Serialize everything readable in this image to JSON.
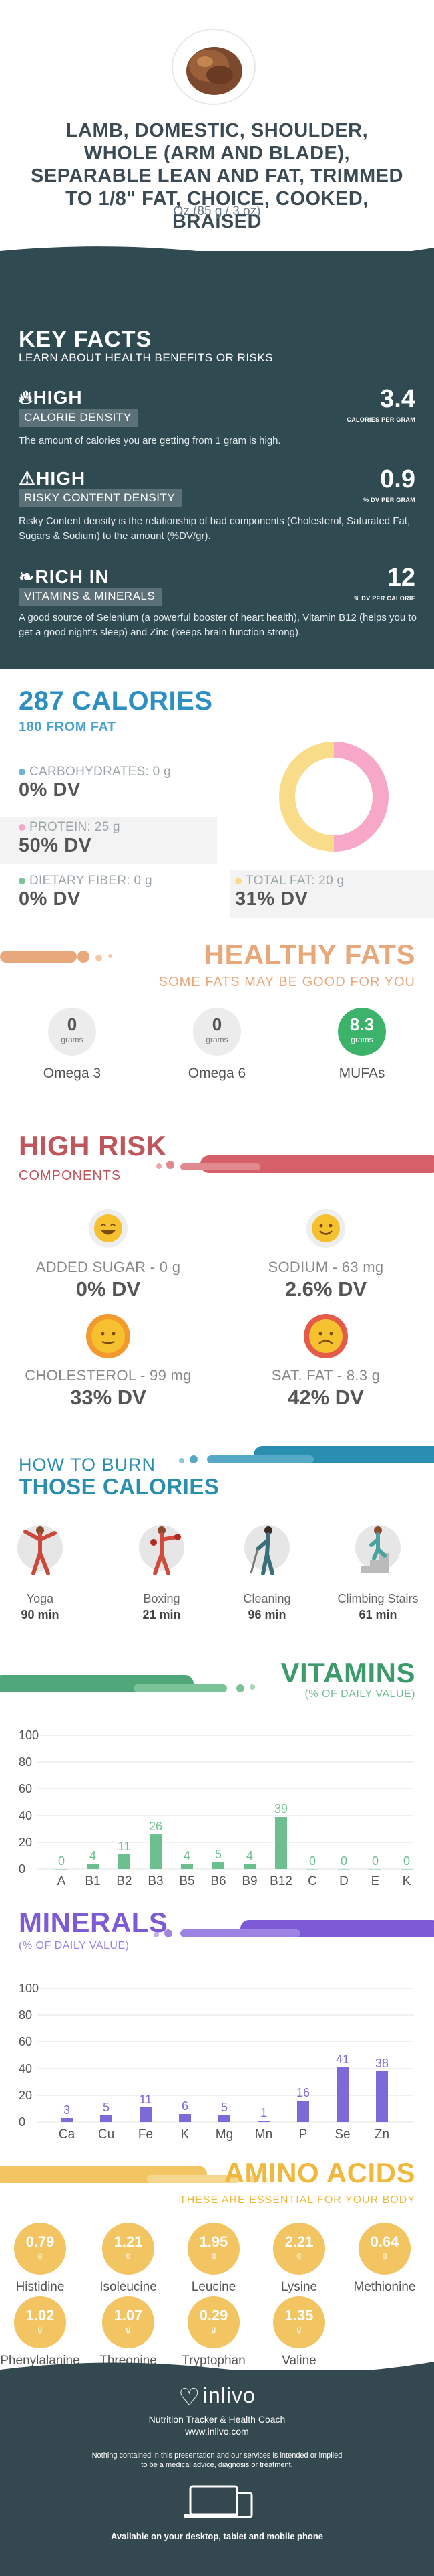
{
  "header": {
    "title": "LAMB, DOMESTIC, SHOULDER, WHOLE (ARM AND BLADE), SEPARABLE LEAN AND FAT, TRIMMED TO 1/8\" FAT, CHOICE, COOKED, BRAISED",
    "serving": "Oz (85 g / 3 oz)"
  },
  "key_facts": {
    "title": "KEY FACTS",
    "subtitle": "LEARN ABOUT HEALTH BENEFITS OR RISKS",
    "items": [
      {
        "level": "HIGH",
        "tag": "CALORIE DENSITY",
        "value": "3.4",
        "unit": "CALORIES PER GRAM",
        "desc": "The amount of calories you are getting from 1 gram is high.",
        "icon": "fire-icon"
      },
      {
        "level": "HIGH",
        "tag": "RISKY CONTENT DENSITY",
        "value": "0.9",
        "unit": "% DV PER GRAM",
        "desc": "Risky Content density is the relationship of bad components (Cholesterol, Saturated Fat, Sugars & Sodium) to the amount (%DV/gr).",
        "icon": "warning-icon"
      },
      {
        "level": "RICH IN",
        "tag": "VITAMINS & MINERALS",
        "value": "12",
        "unit": "% DV PER CALORIE",
        "desc": "A good source of Selenium (a powerful booster of heart health), Vitamin B12 (helps you to get a good night's sleep) and Zinc (keeps brain function strong).",
        "icon": "leaf-icon"
      }
    ]
  },
  "calories": {
    "title": "287 CALORIES",
    "subtitle": "180 FROM FAT",
    "carbs_label": "CARBOHYDRATES: 0 g",
    "carbs_dv": "0% DV",
    "protein_label": "PROTEIN: 25 g",
    "protein_dv": "50% DV",
    "fiber_label": "DIETARY FIBER: 0 g",
    "fiber_dv": "0% DV",
    "fat_label": "TOTAL FAT: 20 g",
    "fat_dv": "31% DV",
    "donut": {
      "protein_fraction": 0.5,
      "fat_fraction": 0.5,
      "protein_color": "#f7a8c8",
      "fat_color": "#f8dc8a"
    }
  },
  "healthy_fats": {
    "title": "HEALTHY FATS",
    "subtitle": "SOME FATS MAY BE GOOD FOR YOU",
    "items": [
      {
        "value": "0",
        "unit": "grams",
        "name": "Omega 3",
        "highlight": false
      },
      {
        "value": "0",
        "unit": "grams",
        "name": "Omega 6",
        "highlight": false
      },
      {
        "value": "8.3",
        "unit": "grams",
        "name": "MUFAs",
        "highlight": true
      }
    ]
  },
  "high_risk": {
    "title": "HIGH RISK",
    "subtitle": "COMPONENTS",
    "items": [
      {
        "label": "ADDED SUGAR - 0 g",
        "dv": "0% DV",
        "face": "happy-face-icon"
      },
      {
        "label": "SODIUM - 63 mg",
        "dv": "2.6% DV",
        "face": "smile-face-icon"
      },
      {
        "label": "CHOLESTEROL - 99 mg",
        "dv": "33% DV",
        "face": "neutral-face-icon"
      },
      {
        "label": "SAT. FAT - 8.3 g",
        "dv": "42% DV",
        "face": "sad-face-icon"
      }
    ]
  },
  "burn": {
    "title_line1": "HOW TO BURN",
    "title_line2": "THOSE CALORIES",
    "items": [
      {
        "name": "Yoga",
        "minutes": "90 min"
      },
      {
        "name": "Boxing",
        "minutes": "21 min"
      },
      {
        "name": "Cleaning",
        "minutes": "96 min"
      },
      {
        "name": "Climbing Stairs",
        "minutes": "61 min"
      }
    ]
  },
  "vitamins_header": {
    "title": "VITAMINS",
    "subtitle": "(% OF DAILY VALUE)"
  },
  "minerals_header": {
    "title": "MINERALS",
    "subtitle": "(% OF DAILY VALUE)"
  },
  "chart_data": [
    {
      "type": "bar",
      "title": "VITAMINS",
      "categories": [
        "A",
        "B1",
        "B2",
        "B3",
        "B5",
        "B6",
        "B9",
        "B12",
        "C",
        "D",
        "E",
        "K"
      ],
      "values": [
        0,
        4,
        11,
        26,
        4,
        5,
        4,
        39,
        0,
        0,
        0,
        0
      ],
      "labels": [
        "0",
        "4",
        "11",
        "26",
        "4",
        "5",
        "4",
        "39",
        "0",
        "0",
        "0",
        "0"
      ],
      "yticks": [
        "0",
        "20",
        "40",
        "60",
        "80",
        "100"
      ],
      "ylim": [
        0,
        100
      ],
      "color": "#6dbf8f"
    },
    {
      "type": "bar",
      "title": "MINERALS",
      "categories": [
        "Ca",
        "Cu",
        "Fe",
        "K",
        "Mg",
        "Mn",
        "P",
        "Se",
        "Zn"
      ],
      "values": [
        3,
        5,
        11,
        6,
        5,
        1,
        16,
        41,
        38
      ],
      "labels": [
        "3",
        "5",
        "11",
        "6",
        "5",
        "1",
        "16",
        "41",
        "38"
      ],
      "yticks": [
        "0",
        "20",
        "40",
        "60",
        "80",
        "100"
      ],
      "ylim": [
        0,
        100
      ],
      "color": "#7d6ad8"
    }
  ],
  "amino": {
    "title": "AMINO ACIDS",
    "subtitle": "THESE ARE ESSENTIAL FOR YOUR BODY",
    "unit": "g",
    "items": [
      {
        "value": "0.79",
        "name": "Histidine"
      },
      {
        "value": "1.21",
        "name": "Isoleucine"
      },
      {
        "value": "1.95",
        "name": "Leucine"
      },
      {
        "value": "2.21",
        "name": "Lysine"
      },
      {
        "value": "0.64",
        "name": "Methionine"
      },
      {
        "value": "1.02",
        "name": "Phenylalanine"
      },
      {
        "value": "1.07",
        "name": "Threonine"
      },
      {
        "value": "0.29",
        "name": "Tryptophan"
      },
      {
        "value": "1.35",
        "name": "Valine"
      }
    ]
  },
  "footer": {
    "brand": "inlivo",
    "tagline": "Nutrition Tracker & Health Coach",
    "url": "www.inlivo.com",
    "disclaimer1": "Nothing contained in this presentation and our services is intended or implied",
    "disclaimer2": "to be a medical advice, diagnosis or treatment.",
    "available": "Available on your desktop, tablet and mobile phone"
  }
}
